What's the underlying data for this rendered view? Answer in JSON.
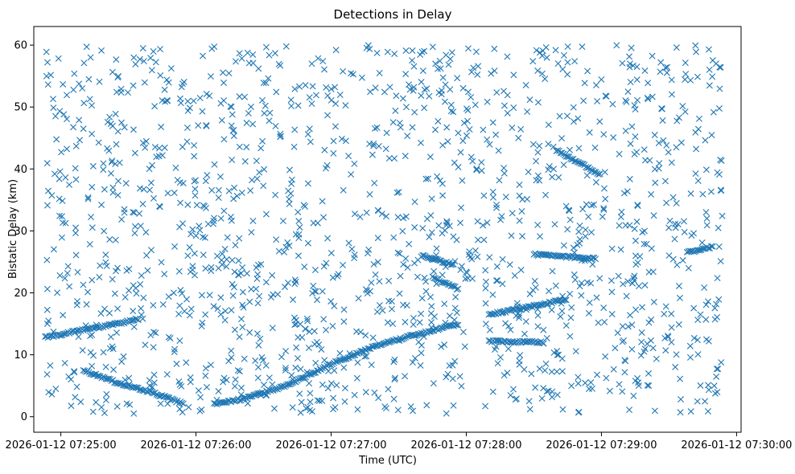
{
  "chart_data": {
    "type": "scatter",
    "title": "Detections in Delay",
    "xlabel": "Time (UTC)",
    "ylabel": "Bistatic Delay (km)",
    "marker": "x",
    "color": "#1f77b4",
    "grid": false,
    "legend": "none",
    "x_axis": {
      "type": "time",
      "range": [
        "2026-01-12 07:24:48",
        "2026-01-12 07:30:02"
      ],
      "ticks": [
        {
          "value": "2026-01-12 07:25:00",
          "label": "2026-01-12 07:25:00"
        },
        {
          "value": "2026-01-12 07:26:00",
          "label": "2026-01-12 07:26:00"
        },
        {
          "value": "2026-01-12 07:27:00",
          "label": "2026-01-12 07:27:00"
        },
        {
          "value": "2026-01-12 07:28:00",
          "label": "2026-01-12 07:28:00"
        },
        {
          "value": "2026-01-12 07:29:00",
          "label": "2026-01-12 07:29:00"
        },
        {
          "value": "2026-01-12 07:30:00",
          "label": "2026-01-12 07:30:00"
        }
      ]
    },
    "y_axis": {
      "range": [
        -2.5,
        63
      ],
      "ticks": [
        0,
        10,
        20,
        30,
        40,
        50,
        60
      ]
    },
    "points_time_range": [
      "2026-01-12 07:24:53",
      "2026-01-12 07:29:54"
    ],
    "tracks": [
      {
        "x": [
          "2026-01-12 07:24:53",
          "2026-01-12 07:25:07",
          "2026-01-12 07:25:22",
          "2026-01-12 07:25:35"
        ],
        "y": [
          12.8,
          13.8,
          14.8,
          15.8
        ]
      },
      {
        "x": [
          "2026-01-12 07:25:10",
          "2026-01-12 07:25:25",
          "2026-01-12 07:25:40",
          "2026-01-12 07:25:55"
        ],
        "y": [
          7.5,
          5.5,
          4.0,
          2.0
        ]
      },
      {
        "x": [
          "2026-01-12 07:26:08",
          "2026-01-12 07:26:20",
          "2026-01-12 07:26:40",
          "2026-01-12 07:27:00",
          "2026-01-12 07:27:20",
          "2026-01-12 07:27:40",
          "2026-01-12 07:27:57"
        ],
        "y": [
          2.0,
          2.8,
          5.0,
          8.5,
          11.5,
          13.5,
          15.0
        ]
      },
      {
        "x": [
          "2026-01-12 07:27:40",
          "2026-01-12 07:27:55"
        ],
        "y": [
          26.0,
          24.5
        ]
      },
      {
        "x": [
          "2026-01-12 07:27:45",
          "2026-01-12 07:27:57"
        ],
        "y": [
          22.5,
          20.5
        ]
      },
      {
        "x": [
          "2026-01-12 07:28:10",
          "2026-01-12 07:28:25",
          "2026-01-12 07:28:45"
        ],
        "y": [
          16.5,
          17.5,
          19.0
        ]
      },
      {
        "x": [
          "2026-01-12 07:28:10",
          "2026-01-12 07:28:35"
        ],
        "y": [
          12.2,
          12.0
        ]
      },
      {
        "x": [
          "2026-01-12 07:28:30",
          "2026-01-12 07:28:58"
        ],
        "y": [
          26.2,
          25.5
        ]
      },
      {
        "x": [
          "2026-01-12 07:28:40",
          "2026-01-12 07:29:00"
        ],
        "y": [
          43.0,
          39.0
        ]
      },
      {
        "x": [
          "2026-01-12 07:29:38",
          "2026-01-12 07:29:50"
        ],
        "y": [
          26.5,
          27.5
        ]
      }
    ],
    "clutter": {
      "description_count": 1500,
      "x_range": [
        "2026-01-12 07:24:53",
        "2026-01-12 07:29:54"
      ],
      "y_range": [
        0.5,
        60
      ]
    }
  }
}
